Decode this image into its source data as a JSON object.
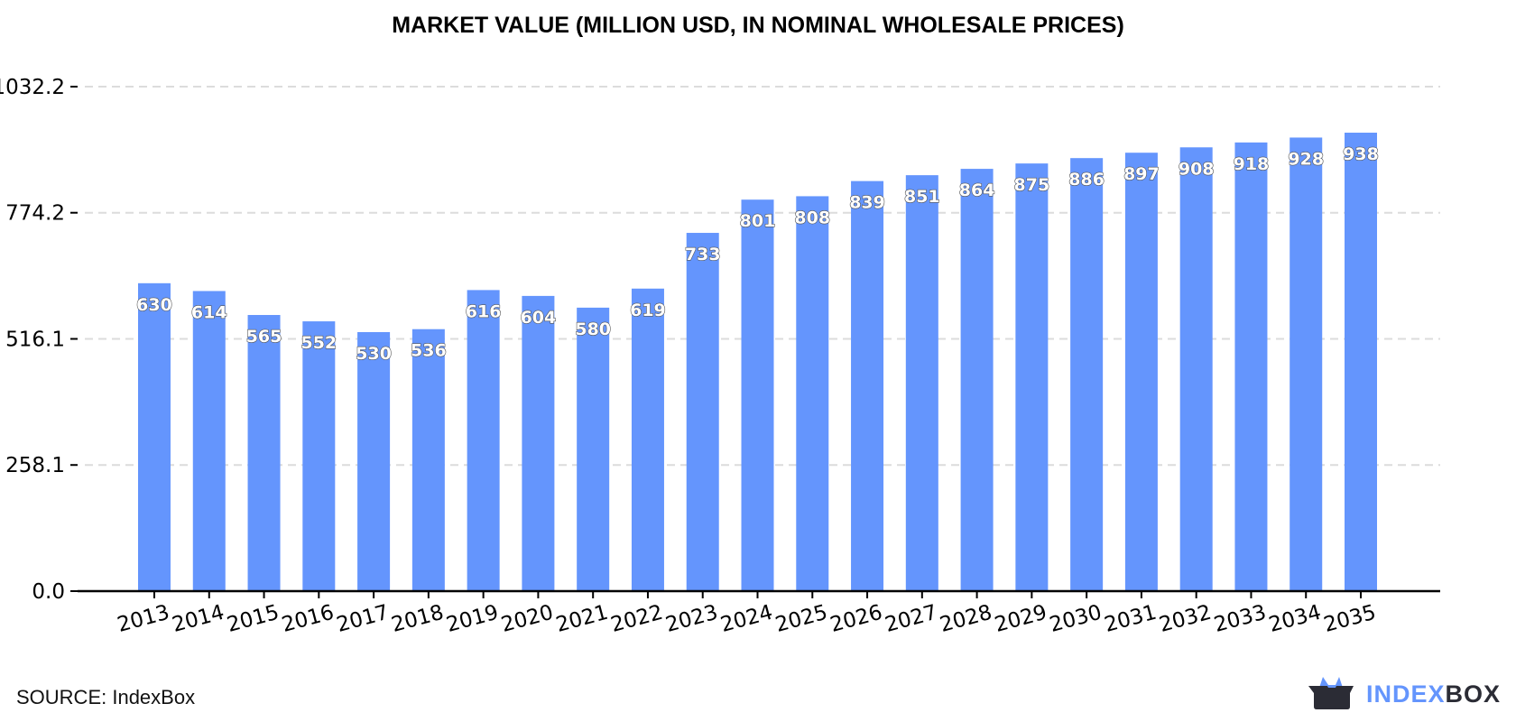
{
  "chart_data": {
    "type": "bar",
    "title": "MARKET VALUE (MILLION USD, IN NOMINAL WHOLESALE PRICES)",
    "categories": [
      "2013",
      "2014",
      "2015",
      "2016",
      "2017",
      "2018",
      "2019",
      "2020",
      "2021",
      "2022",
      "2023",
      "2024",
      "2025",
      "2026",
      "2027",
      "2028",
      "2029",
      "2030",
      "2031",
      "2032",
      "2033",
      "2034",
      "2035"
    ],
    "values": [
      630,
      614,
      565,
      552,
      530,
      536,
      616,
      604,
      580,
      619,
      733,
      801,
      808,
      839,
      851,
      864,
      875,
      886,
      897,
      908,
      918,
      928,
      938
    ],
    "yticks": [
      "0.0",
      "258.1",
      "516.1",
      "774.2",
      "1032.2"
    ],
    "ytick_values": [
      0,
      258.1,
      516.1,
      774.2,
      1032.2
    ],
    "ylim": [
      0,
      1032.2
    ],
    "grid": true,
    "bar_color": "#6495fd"
  },
  "footer": {
    "source": "SOURCE: IndexBox",
    "logo_part1": "INDEX",
    "logo_part2": "BOX"
  },
  "colors": {
    "logo_blue": "#6495fd",
    "logo_dark": "#2b2c35"
  }
}
